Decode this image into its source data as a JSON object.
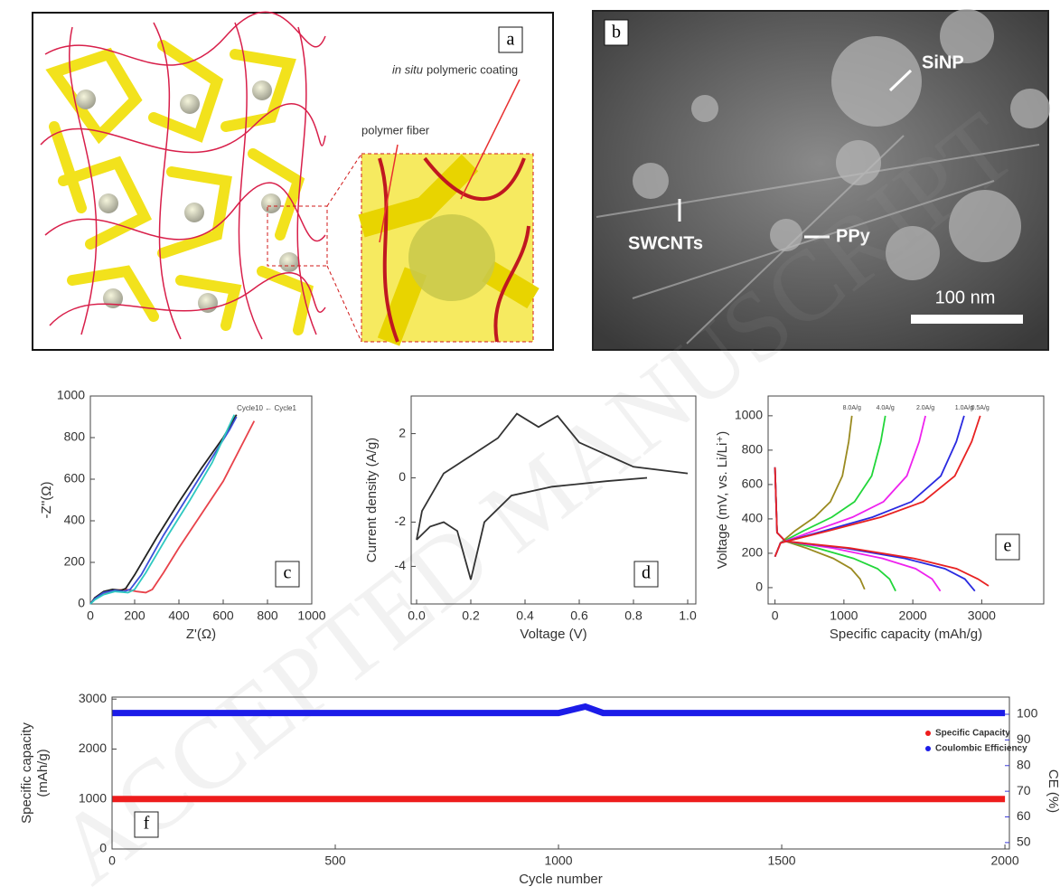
{
  "figure": {
    "panel_a": {
      "label": "a",
      "annotations": [
        "in situ",
        "polymeric coating",
        "polymer fiber"
      ]
    },
    "panel_b": {
      "label": "b",
      "annotations": [
        "SiNP",
        "SWCNTs",
        "PPy",
        "100 nm"
      ]
    },
    "watermark": "ACCEPTED MANUSCRIPT"
  },
  "chart_data": [
    {
      "type": "line",
      "panel_label": "c",
      "annotation": "Cycle10 ← Cycle1",
      "xlabel": "Z'(Ω)",
      "ylabel": "-Z''(Ω)",
      "xlim": [
        0,
        1000
      ],
      "ylim": [
        0,
        1000
      ],
      "xticks": [
        0,
        200,
        400,
        600,
        800,
        1000
      ],
      "yticks": [
        0,
        200,
        400,
        600,
        800,
        1000
      ],
      "series": [
        {
          "color": "#e8424a",
          "x": [
            0,
            20,
            60,
            110,
            160,
            210,
            250,
            280,
            330,
            400,
            500,
            600,
            740
          ],
          "values": [
            0,
            25,
            50,
            65,
            70,
            60,
            55,
            70,
            150,
            270,
            430,
            590,
            880
          ]
        },
        {
          "color": "#222222",
          "x": [
            0,
            20,
            60,
            100,
            140,
            160,
            200,
            300,
            400,
            500,
            600,
            660
          ],
          "values": [
            0,
            30,
            60,
            70,
            65,
            75,
            140,
            320,
            490,
            650,
            800,
            910
          ]
        },
        {
          "color": "#3b4fd8",
          "x": [
            0,
            20,
            60,
            110,
            150,
            180,
            230,
            330,
            430,
            530,
            630,
            660
          ],
          "values": [
            0,
            25,
            55,
            65,
            60,
            70,
            140,
            330,
            500,
            670,
            840,
            900
          ]
        },
        {
          "color": "#2ec8c0",
          "x": [
            0,
            20,
            60,
            110,
            170,
            200,
            250,
            350,
            450,
            550,
            650
          ],
          "values": [
            0,
            20,
            45,
            60,
            55,
            70,
            150,
            330,
            500,
            680,
            910
          ]
        }
      ]
    },
    {
      "type": "line",
      "panel_label": "d",
      "xlabel": "Voltage (V)",
      "ylabel": "Current density (A/g)",
      "xlim": [
        -0.02,
        1.03
      ],
      "ylim": [
        -5.7,
        3.7
      ],
      "xticks": [
        {
          "value": 0,
          "label": "0.0"
        },
        0.2,
        0.4,
        0.6,
        0.8,
        {
          "value": 1,
          "label": "1.0"
        }
      ],
      "yticks": [
        -4,
        -2,
        0,
        2
      ],
      "series": [
        {
          "color": "#333333",
          "x": [
            0,
            0.05,
            0.1,
            0.15,
            0.2,
            0.25,
            0.35,
            0.5,
            0.7,
            0.85,
            null,
            1.0,
            0.8,
            0.6,
            0.52,
            0.45,
            0.37,
            0.3,
            0.2,
            0.1,
            0.02,
            0
          ],
          "values": [
            -2.8,
            -2.2,
            -2.0,
            -2.4,
            -4.6,
            -2.0,
            -0.8,
            -0.4,
            -0.15,
            0.0,
            null,
            0.2,
            0.5,
            1.6,
            2.8,
            2.3,
            2.9,
            1.8,
            1.0,
            0.2,
            -1.5,
            -2.8
          ]
        }
      ]
    },
    {
      "type": "line",
      "panel_label": "e",
      "xlabel": "Specific capacity (mAh/g)",
      "ylabel": "Voltage (mV, vs. Li/Li⁺)",
      "xlim": [
        -100,
        3900
      ],
      "ylim": [
        -95,
        1115
      ],
      "xticks": [
        0,
        1000,
        2000,
        3000
      ],
      "yticks": [
        0,
        200,
        400,
        600,
        800,
        1000
      ],
      "series": [
        {
          "name": "8.0A/g",
          "color": "#9a8a20",
          "x": [
            0,
            30,
            150,
            455,
            845,
            1105,
            1235,
            1300,
            null,
            0,
            80,
            288,
            575,
            805,
            978,
            1070,
            1116
          ],
          "values": [
            700,
            320,
            270,
            230,
            170,
            110,
            50,
            -10,
            null,
            180,
            260,
            330,
            410,
            500,
            650,
            850,
            1000
          ]
        },
        {
          "name": "4.0A/g",
          "color": "#22d63a",
          "x": [
            0,
            30,
            150,
            613,
            1138,
            1488,
            1663,
            1750,
            null,
            0,
            80,
            413,
            825,
            1155,
            1403,
            1535,
            1601
          ],
          "values": [
            700,
            320,
            270,
            230,
            170,
            110,
            50,
            -20,
            null,
            180,
            260,
            330,
            410,
            500,
            650,
            850,
            1000
          ]
        },
        {
          "name": "2.0A/g",
          "color": "#ee22ee",
          "x": [
            0,
            30,
            150,
            840,
            1560,
            2040,
            2280,
            2400,
            null,
            0,
            80,
            563,
            1125,
            1575,
            1913,
            2093,
            2183
          ],
          "values": [
            700,
            320,
            270,
            230,
            170,
            110,
            50,
            -20,
            null,
            180,
            260,
            330,
            410,
            500,
            650,
            850,
            1000
          ]
        },
        {
          "name": "1.0A/g",
          "color": "#2a2ae0",
          "x": [
            0,
            30,
            150,
            1015,
            1885,
            2465,
            2755,
            2900,
            null,
            0,
            80,
            708,
            1415,
            1981,
            2406,
            2632,
            2745
          ],
          "values": [
            700,
            320,
            270,
            230,
            170,
            110,
            50,
            -20,
            null,
            180,
            260,
            330,
            410,
            500,
            650,
            850,
            1000
          ]
        },
        {
          "name": "0.5A/g",
          "color": "#e82222",
          "x": [
            0,
            30,
            150,
            1085,
            2015,
            2635,
            2945,
            3100,
            null,
            0,
            80,
            768,
            1535,
            2149,
            2610,
            2855,
            2978
          ],
          "values": [
            700,
            320,
            270,
            230,
            170,
            110,
            50,
            10,
            null,
            180,
            260,
            330,
            410,
            500,
            650,
            850,
            1000
          ]
        }
      ]
    },
    {
      "type": "line",
      "panel_label": "f",
      "xlabel": "Cycle number",
      "ylabel": [
        "Specific capacity",
        "(mAh/g)"
      ],
      "y2label": "CE (%)",
      "y2color": "#3a3ad8",
      "xlim": [
        0,
        2010
      ],
      "ylim": [
        0,
        3040
      ],
      "y2lim": [
        47.5,
        106.7
      ],
      "xticks": [
        0,
        500,
        1000,
        1500,
        2000
      ],
      "yticks": [
        0,
        1000,
        2000,
        3000
      ],
      "y2ticks": [
        50,
        60,
        70,
        80,
        90,
        100
      ],
      "legend": "upper right",
      "series": [
        {
          "name": "Specific Capacity",
          "color": "#ee1c1c",
          "x": [
            1,
            100,
            200,
            300,
            400,
            500,
            600,
            700,
            800,
            900,
            1000,
            1100,
            1200,
            1300,
            1400,
            1500,
            1600,
            1700,
            1800,
            1900,
            2000
          ],
          "values": [
            1000,
            1000,
            1000,
            1000,
            1000,
            1000,
            1000,
            1000,
            1000,
            1000,
            1000,
            1000,
            1000,
            1000,
            1000,
            1000,
            1000,
            1000,
            1000,
            1000,
            1000
          ]
        },
        {
          "name": "Coulombic Efficiency",
          "color": "#1c1ce8",
          "axis": "y2",
          "x": [
            1,
            100,
            200,
            300,
            400,
            500,
            600,
            700,
            800,
            900,
            1000,
            1060,
            1100,
            1200,
            1300,
            1400,
            1500,
            1600,
            1700,
            1800,
            1900,
            2000
          ],
          "values": [
            100.5,
            100.5,
            100.5,
            100.5,
            100.5,
            100.5,
            100.5,
            100.5,
            100.5,
            100.5,
            100.5,
            103,
            100.5,
            100.5,
            100.5,
            100.5,
            100.5,
            100.5,
            100.5,
            100.5,
            100.5,
            100.5
          ]
        }
      ]
    }
  ]
}
